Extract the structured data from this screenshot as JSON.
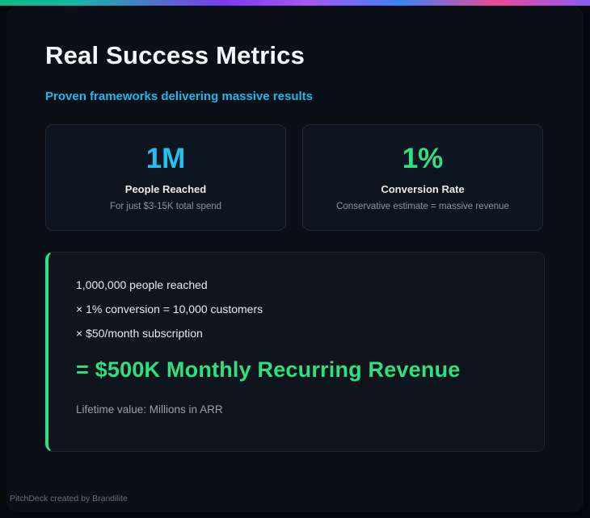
{
  "header": {
    "title": "Real Success Metrics",
    "subtitle": "Proven frameworks delivering massive results"
  },
  "stats": [
    {
      "value": "1M",
      "label": "People Reached",
      "detail": "For just $3-15K total spend",
      "color": "#22c1f2"
    },
    {
      "value": "1%",
      "label": "Conversion Rate",
      "detail": "Conservative estimate = massive revenue",
      "color": "#2ee07f"
    }
  ],
  "calculation": {
    "lines": [
      "1,000,000 people reached",
      "× 1% conversion = 10,000 customers",
      "× $50/month subscription"
    ],
    "result": "= $500K Monthly Recurring Revenue",
    "note": "Lifetime value: Millions in ARR"
  },
  "footer": {
    "credit": "PitchDeck created by Brandilite"
  },
  "colors": {
    "background": "#04070c",
    "slide_background": "#0b1018",
    "accent_cyan": "#22c1f2",
    "accent_green": "#2ee07f",
    "gradient_bar": [
      "#0fb981",
      "#7c3aed",
      "#3b82f6",
      "#ec4899",
      "#8b5cf6"
    ]
  }
}
